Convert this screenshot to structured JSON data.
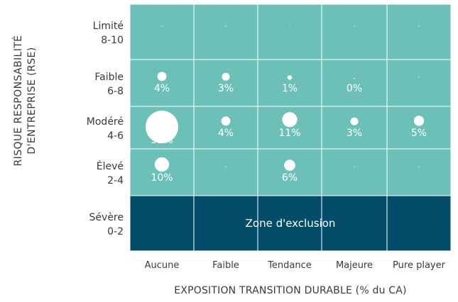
{
  "chart_data": {
    "type": "heatmap",
    "title": "",
    "xlabel": "EXPOSITION TRANSITION DURABLE (% du CA)",
    "ylabel_lines": [
      "RISQUE RESPONSABILITÉ",
      "D'ENTREPRISE (RSE)"
    ],
    "x_categories": [
      "Aucune",
      "Faible",
      "Tendance",
      "Majeure",
      "Pure player"
    ],
    "y_categories": [
      {
        "name": "Limité",
        "range": "8-10"
      },
      {
        "name": "Faible",
        "range": "6-8"
      },
      {
        "name": "Modéré",
        "range": "4-6"
      },
      {
        "name": "Élevé",
        "range": "2-4"
      },
      {
        "name": "Sévère",
        "range": "0-2"
      }
    ],
    "cells": [
      {
        "x": "Aucune",
        "y": "Faible",
        "value": 4,
        "label": "4%"
      },
      {
        "x": "Faible",
        "y": "Faible",
        "value": 3,
        "label": "3%"
      },
      {
        "x": "Tendance",
        "y": "Faible",
        "value": 1,
        "label": "1%"
      },
      {
        "x": "Majeure",
        "y": "Faible",
        "value": 0,
        "label": "0%"
      },
      {
        "x": "Aucune",
        "y": "Modéré",
        "value": 52,
        "label": "52%"
      },
      {
        "x": "Faible",
        "y": "Modéré",
        "value": 4,
        "label": "4%"
      },
      {
        "x": "Tendance",
        "y": "Modéré",
        "value": 11,
        "label": "11%"
      },
      {
        "x": "Majeure",
        "y": "Modéré",
        "value": 3,
        "label": "3%"
      },
      {
        "x": "Pure player",
        "y": "Modéré",
        "value": 5,
        "label": "5%"
      },
      {
        "x": "Aucune",
        "y": "Élevé",
        "value": 10,
        "label": "10%"
      },
      {
        "x": "Tendance",
        "y": "Élevé",
        "value": 6,
        "label": "6%"
      }
    ],
    "exclusion_zone": {
      "label": "Zone d'exclusion",
      "y": "Sévère"
    },
    "colors": {
      "cell": "#6cc0b8",
      "exclusion": "#034d6b",
      "grid": "#ffffff",
      "label": "#ffffff",
      "axis_text": "#3a3a3a"
    }
  }
}
